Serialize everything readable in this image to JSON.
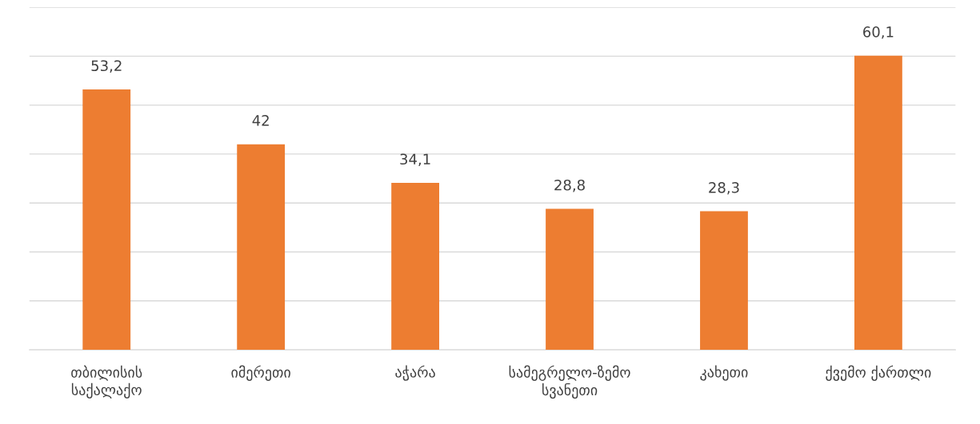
{
  "chart_data": {
    "type": "bar",
    "categories": [
      "თბილისის\nსაქალაქო",
      "იმერეთი",
      "აჭარა",
      "სამეგრელო-ზემო\nსვანეთი",
      "კახეთი",
      "ქვემო ქართლი"
    ],
    "values": [
      53.2,
      42,
      34.1,
      28.8,
      28.3,
      60.1
    ],
    "value_labels": [
      "53,2",
      "42",
      "34,1",
      "28,8",
      "28,3",
      "60,1"
    ],
    "color": "#ed7d31",
    "ylim": [
      0,
      70
    ],
    "yticks": [
      {
        "value": 0,
        "label": null
      },
      {
        "value": 10,
        "label": null
      },
      {
        "value": 20,
        "label": null
      },
      {
        "value": 30,
        "label": null
      },
      {
        "value": 40,
        "label": null
      },
      {
        "value": 50,
        "label": null
      },
      {
        "value": 60,
        "label": null
      },
      {
        "value": 70,
        "label": null
      }
    ],
    "grid": "y",
    "tick_labels": "x"
  }
}
